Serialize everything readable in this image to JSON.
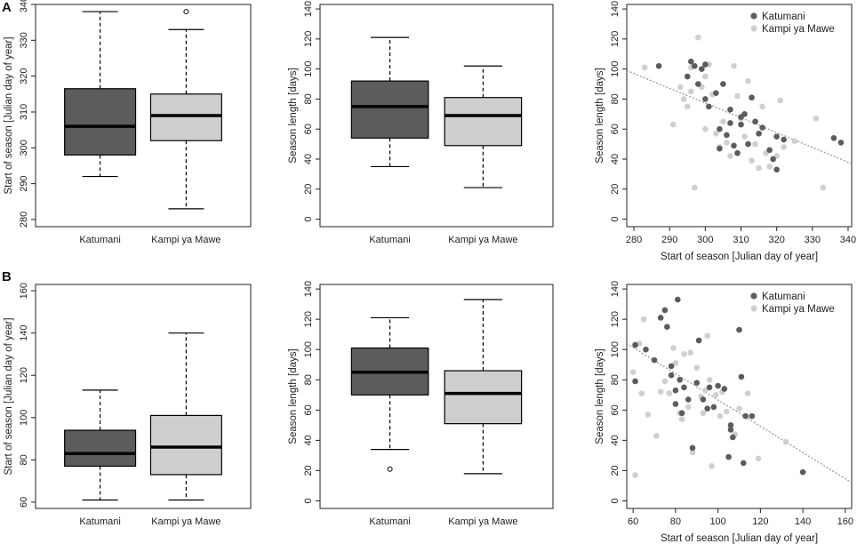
{
  "panel_labels": [
    "A",
    "B"
  ],
  "colors": {
    "katumani": "#5c5c5c",
    "kampi": "#cfcfcf",
    "trend": "#9a9a9a",
    "axis": "#222222",
    "median": "#000000"
  },
  "chart_data": [
    {
      "id": "A1",
      "row": "A",
      "type": "box",
      "categories": [
        "Katumani",
        "Kampi ya Mawe"
      ],
      "boxes": [
        {
          "name": "Katumani",
          "whisker_low": 292,
          "q1": 298,
          "median": 306,
          "q3": 316.5,
          "whisker_high": 338,
          "outliers": []
        },
        {
          "name": "Kampi ya Mawe",
          "whisker_low": 283,
          "q1": 302,
          "median": 309,
          "q3": 315,
          "whisker_high": 333,
          "outliers": [
            338
          ]
        }
      ],
      "ylabel": "Start of season [Julian day of year]",
      "ylim": [
        278,
        340
      ],
      "yticks": [
        280,
        290,
        300,
        310,
        320,
        330,
        340
      ]
    },
    {
      "id": "A2",
      "row": "A",
      "type": "box",
      "categories": [
        "Katumani",
        "Kampi ya Mawe"
      ],
      "boxes": [
        {
          "name": "Katumani",
          "whisker_low": 35,
          "q1": 54,
          "median": 75,
          "q3": 92,
          "whisker_high": 121,
          "outliers": []
        },
        {
          "name": "Kampi ya Mawe",
          "whisker_low": 21,
          "q1": 49,
          "median": 69,
          "q3": 81,
          "whisker_high": 102,
          "outliers": []
        }
      ],
      "ylabel": "Season length [days]",
      "ylim": [
        -5,
        143
      ],
      "yticks": [
        0,
        20,
        40,
        60,
        80,
        100,
        120,
        140
      ]
    },
    {
      "id": "A3",
      "row": "A",
      "type": "scatter",
      "xlabel": "Start of season [Julian day of year]",
      "ylabel": "Season length [days]",
      "xlim": [
        278,
        341
      ],
      "ylim": [
        -5,
        143
      ],
      "xticks": [
        280,
        290,
        300,
        310,
        320,
        330,
        340
      ],
      "yticks": [
        0,
        20,
        40,
        60,
        80,
        100,
        120,
        140
      ],
      "legend": [
        "Katumani",
        "Kampi ya Mawe"
      ],
      "legend_position": "top-right",
      "trend": {
        "x1": 278,
        "y1": 99,
        "x2": 341,
        "y2": 37
      },
      "series": [
        {
          "name": "Katumani",
          "points": [
            [
              287,
              102
            ],
            [
              295,
              95
            ],
            [
              296,
              105
            ],
            [
              297,
              102
            ],
            [
              299,
              100
            ],
            [
              300,
              103
            ],
            [
              298,
              90
            ],
            [
              300,
              80
            ],
            [
              301,
              75
            ],
            [
              303,
              84
            ],
            [
              304,
              60
            ],
            [
              304,
              47
            ],
            [
              305,
              90
            ],
            [
              306,
              56
            ],
            [
              307,
              64
            ],
            [
              307,
              73
            ],
            [
              308,
              49
            ],
            [
              309,
              44
            ],
            [
              310,
              63
            ],
            [
              310,
              68
            ],
            [
              311,
              70
            ],
            [
              312,
              50
            ],
            [
              313,
              81
            ],
            [
              314,
              65
            ],
            [
              315,
              57
            ],
            [
              316,
              61
            ],
            [
              318,
              46
            ],
            [
              319,
              40
            ],
            [
              320,
              55
            ],
            [
              320,
              33
            ],
            [
              322,
              53
            ],
            [
              336,
              54
            ],
            [
              338,
              51
            ]
          ]
        },
        {
          "name": "Kampi ya Mawe",
          "points": [
            [
              283,
              101
            ],
            [
              291,
              63
            ],
            [
              293,
              88
            ],
            [
              294,
              80
            ],
            [
              295,
              75
            ],
            [
              296,
              101
            ],
            [
              296,
              85
            ],
            [
              297,
              21
            ],
            [
              298,
              121
            ],
            [
              299,
              88
            ],
            [
              300,
              95
            ],
            [
              300,
              60
            ],
            [
              301,
              103
            ],
            [
              302,
              83
            ],
            [
              303,
              57
            ],
            [
              304,
              48
            ],
            [
              305,
              65
            ],
            [
              306,
              51
            ],
            [
              307,
              42
            ],
            [
              308,
              102
            ],
            [
              309,
              82
            ],
            [
              310,
              67
            ],
            [
              311,
              55
            ],
            [
              312,
              92
            ],
            [
              313,
              39
            ],
            [
              314,
              50
            ],
            [
              315,
              34
            ],
            [
              316,
              75
            ],
            [
              317,
              44
            ],
            [
              318,
              35
            ],
            [
              320,
              42
            ],
            [
              321,
              79
            ],
            [
              322,
              48
            ],
            [
              325,
              52
            ],
            [
              331,
              67
            ],
            [
              333,
              21
            ]
          ]
        }
      ]
    },
    {
      "id": "B1",
      "row": "B",
      "type": "box",
      "categories": [
        "Katumani",
        "Kampi ya Mawe"
      ],
      "boxes": [
        {
          "name": "Katumani",
          "whisker_low": 61,
          "q1": 77,
          "median": 83,
          "q3": 94,
          "whisker_high": 113,
          "outliers": []
        },
        {
          "name": "Kampi ya Mawe",
          "whisker_low": 61,
          "q1": 73,
          "median": 86,
          "q3": 101,
          "whisker_high": 140,
          "outliers": []
        }
      ],
      "ylabel": "Start of season [Julian day of year]",
      "ylim": [
        57,
        163
      ],
      "yticks": [
        60,
        80,
        100,
        120,
        140,
        160
      ]
    },
    {
      "id": "B2",
      "row": "B",
      "type": "box",
      "categories": [
        "Katumani",
        "Kampi ya Mawe"
      ],
      "boxes": [
        {
          "name": "Katumani",
          "whisker_low": 34,
          "q1": 70,
          "median": 85,
          "q3": 101,
          "whisker_high": 121,
          "outliers": [
            21
          ]
        },
        {
          "name": "Kampi ya Mawe",
          "whisker_low": 18,
          "q1": 51,
          "median": 71,
          "q3": 86,
          "whisker_high": 133,
          "outliers": []
        }
      ],
      "ylabel": "Season length [days]",
      "ylim": [
        -5,
        143
      ],
      "yticks": [
        0,
        20,
        40,
        60,
        80,
        100,
        120,
        140
      ]
    },
    {
      "id": "B3",
      "row": "B",
      "type": "scatter",
      "xlabel": "Start of season [Julian day of year]",
      "ylabel": "Season length [days]",
      "xlim": [
        57,
        163
      ],
      "ylim": [
        -5,
        143
      ],
      "xticks": [
        60,
        80,
        100,
        120,
        140,
        160
      ],
      "yticks": [
        0,
        20,
        40,
        60,
        80,
        100,
        120,
        140
      ],
      "legend": [
        "Katumani",
        "Kampi ya Mawe"
      ],
      "legend_position": "top-right",
      "trend": {
        "x1": 57,
        "y1": 104,
        "x2": 163,
        "y2": 12
      },
      "series": [
        {
          "name": "Katumani",
          "points": [
            [
              61,
              103
            ],
            [
              61,
              79
            ],
            [
              66,
              100
            ],
            [
              70,
              93
            ],
            [
              73,
              121
            ],
            [
              75,
              126
            ],
            [
              76,
              115
            ],
            [
              78,
              89
            ],
            [
              78,
              83
            ],
            [
              80,
              64
            ],
            [
              80,
              73
            ],
            [
              81,
              133
            ],
            [
              82,
              80
            ],
            [
              83,
              58
            ],
            [
              84,
              75
            ],
            [
              86,
              67
            ],
            [
              88,
              35
            ],
            [
              90,
              78
            ],
            [
              91,
              106
            ],
            [
              93,
              67
            ],
            [
              95,
              61
            ],
            [
              96,
              75
            ],
            [
              98,
              62
            ],
            [
              100,
              76
            ],
            [
              103,
              74
            ],
            [
              105,
              29
            ],
            [
              106,
              50
            ],
            [
              106,
              47
            ],
            [
              107,
              42
            ],
            [
              110,
              113
            ],
            [
              111,
              82
            ],
            [
              112,
              25
            ],
            [
              113,
              56
            ],
            [
              116,
              56
            ],
            [
              140,
              19
            ]
          ]
        },
        {
          "name": "Kampi ya Mawe",
          "points": [
            [
              60,
              85
            ],
            [
              61,
              17
            ],
            [
              63,
              104
            ],
            [
              64,
              71
            ],
            [
              65,
              120
            ],
            [
              67,
              57
            ],
            [
              71,
              43
            ],
            [
              73,
              72
            ],
            [
              75,
              79
            ],
            [
              77,
              71
            ],
            [
              79,
              101
            ],
            [
              80,
              91
            ],
            [
              82,
              58
            ],
            [
              83,
              54
            ],
            [
              84,
              97
            ],
            [
              86,
              62
            ],
            [
              87,
              98
            ],
            [
              88,
              32
            ],
            [
              90,
              88
            ],
            [
              92,
              69
            ],
            [
              93,
              58
            ],
            [
              94,
              73
            ],
            [
              95,
              109
            ],
            [
              96,
              80
            ],
            [
              97,
              23
            ],
            [
              99,
              70
            ],
            [
              101,
              56
            ],
            [
              102,
              72
            ],
            [
              104,
              59
            ],
            [
              108,
              44
            ],
            [
              110,
              61
            ],
            [
              114,
              71
            ],
            [
              119,
              28
            ],
            [
              132,
              39
            ]
          ]
        }
      ]
    }
  ]
}
